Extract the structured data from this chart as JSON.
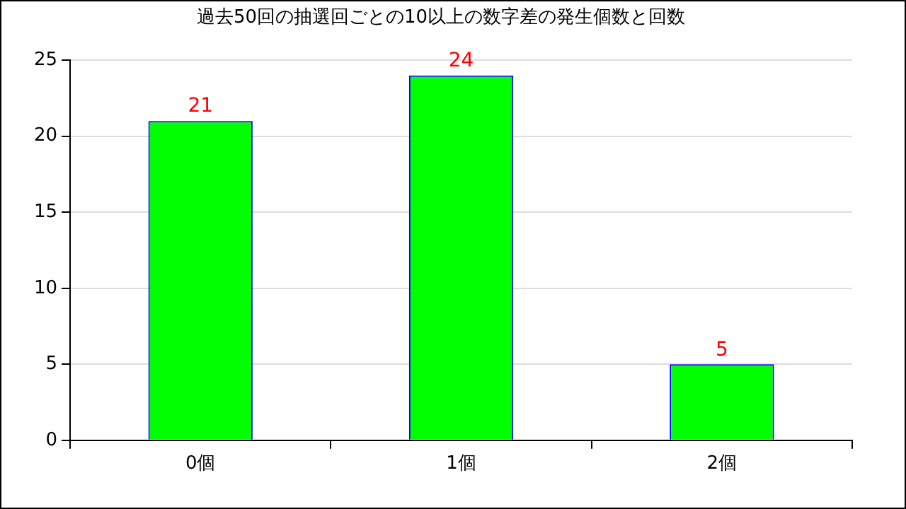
{
  "chart_data": {
    "type": "bar",
    "title": "過去50回の抽選回ごとの10以上の数字差の発生個数と回数",
    "categories": [
      "0個",
      "1個",
      "2個"
    ],
    "series": [
      {
        "color": "#00ff00",
        "values": [
          21,
          24,
          5
        ]
      }
    ],
    "ylim": [
      0,
      25
    ],
    "yticks": [
      0,
      5,
      10,
      15,
      20,
      25
    ],
    "grid": "y",
    "data_labels": true,
    "legend": false
  }
}
